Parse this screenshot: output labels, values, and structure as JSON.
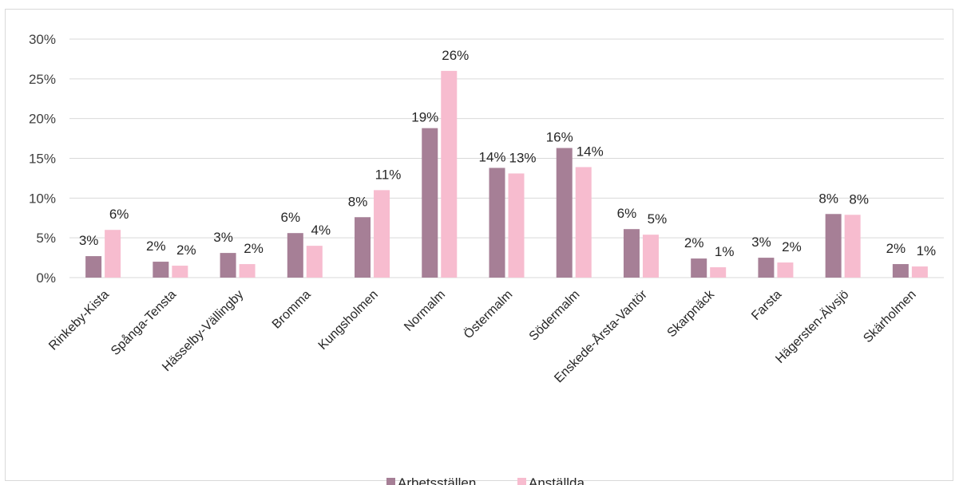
{
  "chart_data": {
    "type": "bar",
    "title": "",
    "xlabel": "",
    "ylabel": "",
    "ylim": [
      0,
      0.3
    ],
    "yticks": [
      "0%",
      "5%",
      "10%",
      "15%",
      "20%",
      "25%",
      "30%"
    ],
    "grid": true,
    "legend_position": "bottom",
    "categories": [
      "Rinkeby-Kista",
      "Spånga-Tensta",
      "Hässelby-Vällingby",
      "Bromma",
      "Kungsholmen",
      "Normalm",
      "Östermalm",
      "Södermalm",
      "Enskede-Årsta-Vantör",
      "Skarpnäck",
      "Farsta",
      "Hägersten-Älvsjö",
      "Skärholmen"
    ],
    "series": [
      {
        "name": "Arbetsställen",
        "color": "#a67f96",
        "values": [
          0.027,
          0.02,
          0.031,
          0.056,
          0.076,
          0.188,
          0.138,
          0.163,
          0.061,
          0.024,
          0.025,
          0.08,
          0.017
        ],
        "labels": [
          "3%",
          "2%",
          "3%",
          "6%",
          "8%",
          "19%",
          "14%",
          "16%",
          "6%",
          "2%",
          "3%",
          "8%",
          "2%"
        ]
      },
      {
        "name": "Anställda",
        "color": "#f7bccf",
        "values": [
          0.06,
          0.015,
          0.017,
          0.04,
          0.11,
          0.26,
          0.131,
          0.139,
          0.054,
          0.013,
          0.019,
          0.079,
          0.014
        ],
        "labels": [
          "6%",
          "2%",
          "2%",
          "4%",
          "11%",
          "26%",
          "13%",
          "14%",
          "5%",
          "1%",
          "2%",
          "8%",
          "1%"
        ]
      }
    ]
  }
}
